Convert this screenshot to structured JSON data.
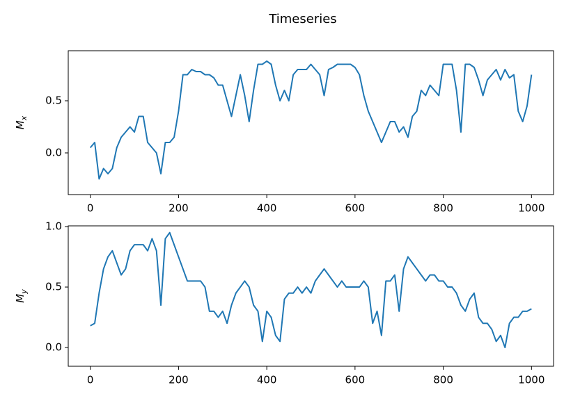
{
  "title": "Timeseries",
  "chart_data": [
    {
      "type": "line",
      "color": "#1f77b4",
      "ylabel": {
        "text": "M",
        "subscript": "x"
      },
      "xlim": [
        -50,
        1050
      ],
      "ylim": [
        -0.4,
        0.98
      ],
      "xticks": [
        0,
        200,
        400,
        600,
        800,
        1000
      ],
      "yticks": [
        {
          "value": 0,
          "label": "0.0"
        },
        {
          "value": 0.5,
          "label": "0.5"
        }
      ],
      "x": [
        0,
        10,
        20,
        30,
        40,
        50,
        60,
        70,
        80,
        90,
        100,
        110,
        120,
        130,
        140,
        150,
        160,
        170,
        180,
        190,
        200,
        210,
        220,
        230,
        240,
        250,
        260,
        270,
        280,
        290,
        300,
        310,
        320,
        330,
        340,
        350,
        360,
        370,
        380,
        390,
        400,
        410,
        420,
        430,
        440,
        450,
        460,
        470,
        480,
        490,
        500,
        510,
        520,
        530,
        540,
        550,
        560,
        570,
        580,
        590,
        600,
        610,
        620,
        630,
        640,
        650,
        660,
        670,
        680,
        690,
        700,
        710,
        720,
        730,
        740,
        750,
        760,
        770,
        780,
        790,
        800,
        810,
        820,
        830,
        840,
        850,
        860,
        870,
        880,
        890,
        900,
        910,
        920,
        930,
        940,
        950,
        960,
        970,
        980,
        990,
        1000
      ],
      "values": [
        0.05,
        0.1,
        -0.25,
        -0.15,
        -0.2,
        -0.15,
        0.05,
        0.15,
        0.2,
        0.25,
        0.2,
        0.35,
        0.35,
        0.1,
        0.05,
        0.0,
        -0.2,
        0.1,
        0.1,
        0.15,
        0.4,
        0.75,
        0.75,
        0.8,
        0.78,
        0.78,
        0.75,
        0.75,
        0.72,
        0.65,
        0.65,
        0.5,
        0.35,
        0.55,
        0.75,
        0.55,
        0.3,
        0.6,
        0.85,
        0.85,
        0.88,
        0.85,
        0.65,
        0.5,
        0.6,
        0.5,
        0.75,
        0.8,
        0.8,
        0.8,
        0.85,
        0.8,
        0.75,
        0.55,
        0.8,
        0.82,
        0.85,
        0.85,
        0.85,
        0.85,
        0.82,
        0.75,
        0.55,
        0.4,
        0.3,
        0.2,
        0.1,
        0.2,
        0.3,
        0.3,
        0.2,
        0.25,
        0.15,
        0.35,
        0.4,
        0.6,
        0.55,
        0.65,
        0.6,
        0.55,
        0.85,
        0.85,
        0.85,
        0.6,
        0.2,
        0.85,
        0.85,
        0.82,
        0.7,
        0.55,
        0.7,
        0.75,
        0.8,
        0.7,
        0.8,
        0.72,
        0.75,
        0.4,
        0.3,
        0.45,
        0.75
      ]
    },
    {
      "type": "line",
      "color": "#1f77b4",
      "ylabel": {
        "text": "M",
        "subscript": "y"
      },
      "xlim": [
        -50,
        1050
      ],
      "ylim": [
        -0.155,
        1.006
      ],
      "xticks": [
        0,
        200,
        400,
        600,
        800,
        1000
      ],
      "yticks": [
        {
          "value": 0,
          "label": "0.0"
        },
        {
          "value": 0.5,
          "label": "0.5"
        },
        {
          "value": 1,
          "label": "1.0"
        }
      ],
      "x": [
        0,
        10,
        20,
        30,
        40,
        50,
        60,
        70,
        80,
        90,
        100,
        110,
        120,
        130,
        140,
        150,
        160,
        170,
        180,
        190,
        200,
        210,
        220,
        230,
        240,
        250,
        260,
        270,
        280,
        290,
        300,
        310,
        320,
        330,
        340,
        350,
        360,
        370,
        380,
        390,
        400,
        410,
        420,
        430,
        440,
        450,
        460,
        470,
        480,
        490,
        500,
        510,
        520,
        530,
        540,
        550,
        560,
        570,
        580,
        590,
        600,
        610,
        620,
        630,
        640,
        650,
        660,
        670,
        680,
        690,
        700,
        710,
        720,
        730,
        740,
        750,
        760,
        770,
        780,
        790,
        800,
        810,
        820,
        830,
        840,
        850,
        860,
        870,
        880,
        890,
        900,
        910,
        920,
        930,
        940,
        950,
        960,
        970,
        980,
        990,
        1000
      ],
      "values": [
        0.18,
        0.2,
        0.45,
        0.65,
        0.75,
        0.8,
        0.7,
        0.6,
        0.65,
        0.8,
        0.85,
        0.85,
        0.85,
        0.8,
        0.9,
        0.8,
        0.35,
        0.9,
        0.95,
        0.85,
        0.75,
        0.65,
        0.55,
        0.55,
        0.55,
        0.55,
        0.5,
        0.3,
        0.3,
        0.25,
        0.3,
        0.2,
        0.35,
        0.45,
        0.5,
        0.55,
        0.5,
        0.35,
        0.3,
        0.05,
        0.3,
        0.25,
        0.1,
        0.05,
        0.4,
        0.45,
        0.45,
        0.5,
        0.45,
        0.5,
        0.45,
        0.55,
        0.6,
        0.65,
        0.6,
        0.55,
        0.5,
        0.55,
        0.5,
        0.5,
        0.5,
        0.5,
        0.55,
        0.5,
        0.2,
        0.3,
        0.1,
        0.55,
        0.55,
        0.6,
        0.3,
        0.65,
        0.75,
        0.7,
        0.65,
        0.6,
        0.55,
        0.6,
        0.6,
        0.55,
        0.55,
        0.5,
        0.5,
        0.45,
        0.35,
        0.3,
        0.4,
        0.45,
        0.25,
        0.2,
        0.2,
        0.15,
        0.05,
        0.1,
        0.0,
        0.2,
        0.25,
        0.25,
        0.3,
        0.3,
        0.32
      ]
    }
  ]
}
